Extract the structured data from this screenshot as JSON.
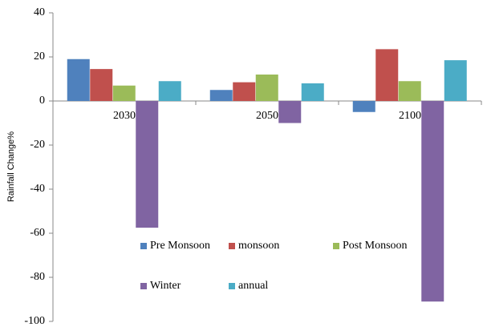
{
  "chart_data": {
    "type": "bar",
    "y_label": "Rainfall Change%",
    "categories": [
      "2030",
      "2050",
      "2100"
    ],
    "series": [
      {
        "name": "Pre Monsoon",
        "color": "#4F81BD",
        "values": [
          19,
          5,
          -5
        ]
      },
      {
        "name": "monsoon",
        "color": "#C0504D",
        "values": [
          14.5,
          8.5,
          23.5
        ]
      },
      {
        "name": "Post Monsoon",
        "color": "#9BBB59",
        "values": [
          7,
          12,
          9
        ]
      },
      {
        "name": "Winter",
        "color": "#8064A2",
        "values": [
          -57.5,
          -10,
          -91
        ]
      },
      {
        "name": "annual",
        "color": "#4BACC6",
        "values": [
          9,
          8,
          18.5
        ]
      }
    ],
    "ylim": [
      -100,
      40
    ],
    "yticks": [
      -100,
      -80,
      -60,
      -40,
      -20,
      0,
      20,
      40
    ],
    "grid": false
  }
}
